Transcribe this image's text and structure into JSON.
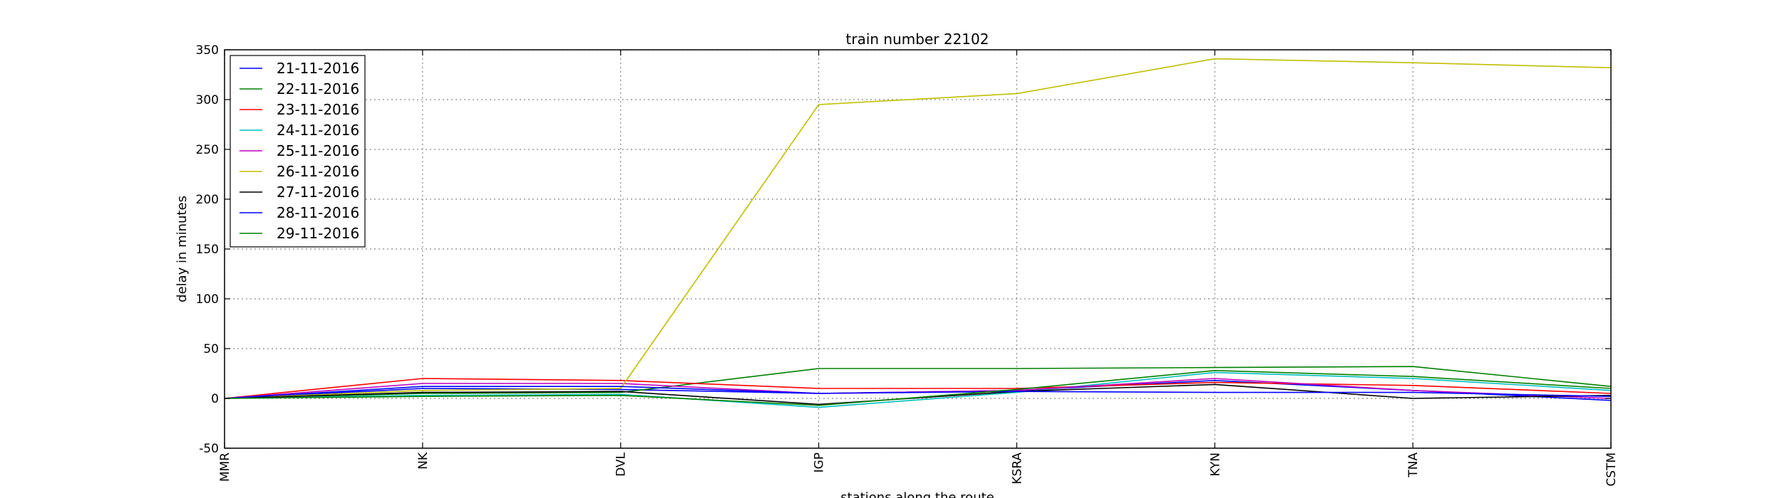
{
  "chart_data": {
    "type": "line",
    "title": "train number 22102",
    "xlabel": "stations along the route",
    "ylabel": "delay in minutes",
    "categories": [
      "MMR",
      "NK",
      "DVL",
      "IGP",
      "KSRA",
      "KYN",
      "TNA",
      "CSTM"
    ],
    "ylim": [
      -50,
      350
    ],
    "yticks": [
      -50,
      0,
      50,
      100,
      150,
      200,
      250,
      300,
      350
    ],
    "grid": true,
    "legend_position": "top-left",
    "series": [
      {
        "name": "21-11-2016",
        "color": "#0000ff",
        "values": [
          0,
          10,
          9,
          5,
          8,
          18,
          8,
          -2
        ]
      },
      {
        "name": "22-11-2016",
        "color": "#008000",
        "values": [
          0,
          5,
          6,
          30,
          30,
          31,
          32,
          12
        ]
      },
      {
        "name": "23-11-2016",
        "color": "#ff0000",
        "values": [
          0,
          20,
          18,
          10,
          10,
          16,
          13,
          5
        ]
      },
      {
        "name": "24-11-2016",
        "color": "#00bfbf",
        "values": [
          0,
          3,
          4,
          -9,
          6,
          26,
          20,
          8
        ]
      },
      {
        "name": "25-11-2016",
        "color": "#bf00bf",
        "values": [
          0,
          15,
          15,
          5,
          8,
          20,
          8,
          0
        ]
      },
      {
        "name": "26-11-2016",
        "color": "#bfbf00",
        "values": [
          0,
          8,
          10,
          295,
          306,
          341,
          337,
          332
        ]
      },
      {
        "name": "27-11-2016",
        "color": "#000000",
        "values": [
          0,
          6,
          7,
          -6,
          7,
          14,
          0,
          3
        ]
      },
      {
        "name": "28-11-2016",
        "color": "#0000ff",
        "values": [
          0,
          12,
          12,
          5,
          7,
          6,
          6,
          2
        ]
      },
      {
        "name": "29-11-2016",
        "color": "#008000",
        "values": [
          0,
          2,
          3,
          -7,
          9,
          28,
          22,
          10
        ]
      }
    ]
  }
}
